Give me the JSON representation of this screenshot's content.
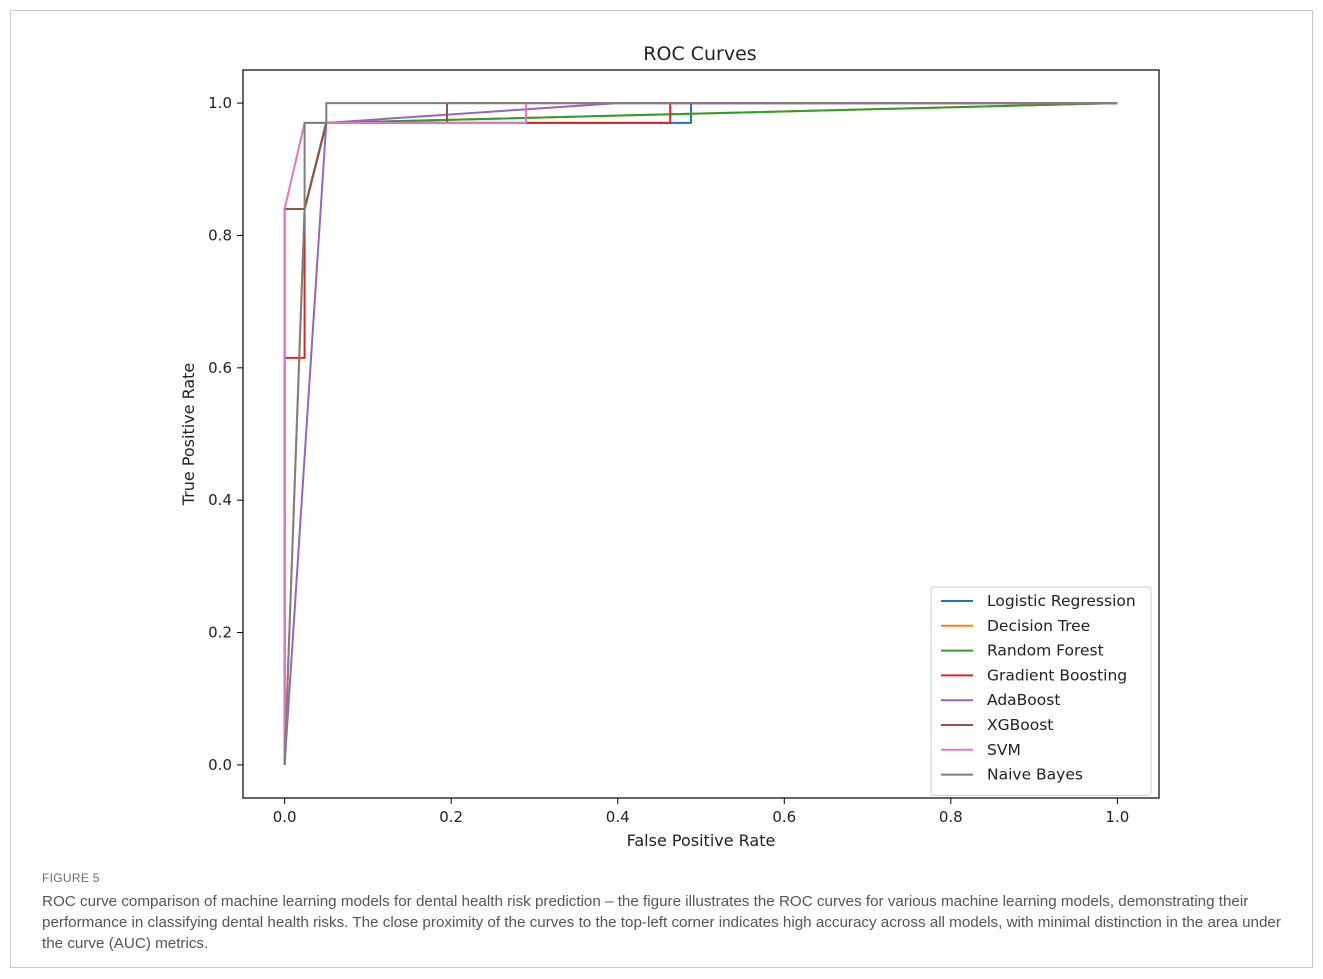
{
  "chart_data": {
    "type": "line",
    "title": "ROC Curves",
    "xlabel": "False Positive Rate",
    "ylabel": "True Positive Rate",
    "xlim": [
      -0.05,
      1.05
    ],
    "ylim": [
      -0.05,
      1.05
    ],
    "xticks": [
      "0.0",
      "0.2",
      "0.4",
      "0.6",
      "0.8",
      "1.0"
    ],
    "yticks": [
      "0.0",
      "0.2",
      "0.4",
      "0.6",
      "0.8",
      "1.0"
    ],
    "grid": false,
    "legend_position": "bottom-right",
    "series": [
      {
        "name": "Logistic Regression",
        "color": "#1f77b4",
        "x": [
          0,
          0,
          0.024,
          0.05,
          0.488,
          0.488,
          1.0
        ],
        "y": [
          0,
          0.84,
          0.84,
          0.97,
          0.97,
          1.0,
          1.0
        ]
      },
      {
        "name": "Decision Tree",
        "color": "#ff7f0e",
        "x": [
          0,
          0.024,
          0.05,
          1.0
        ],
        "y": [
          0,
          0.84,
          0.97,
          1.0
        ]
      },
      {
        "name": "Random Forest",
        "color": "#2ca02c",
        "x": [
          0,
          0,
          0.024,
          0.05,
          1.0
        ],
        "y": [
          0,
          0.84,
          0.84,
          0.97,
          1.0
        ]
      },
      {
        "name": "Gradient Boosting",
        "color": "#d62728",
        "x": [
          0,
          0,
          0.024,
          0.024,
          0.05,
          0.463,
          0.463,
          1.0
        ],
        "y": [
          0,
          0.615,
          0.615,
          0.84,
          0.97,
          0.97,
          1.0,
          1.0
        ]
      },
      {
        "name": "AdaBoost",
        "color": "#9467bd",
        "x": [
          0,
          0.05,
          0.4,
          1.0
        ],
        "y": [
          0,
          0.97,
          1.0,
          1.0
        ]
      },
      {
        "name": "XGBoost",
        "color": "#8c564b",
        "x": [
          0,
          0,
          0.024,
          0.05,
          0.195,
          0.195,
          1.0
        ],
        "y": [
          0,
          0.84,
          0.84,
          0.97,
          0.97,
          1.0,
          1.0
        ]
      },
      {
        "name": "SVM",
        "color": "#e377c2",
        "x": [
          0,
          0,
          0.024,
          0.29,
          0.29,
          1.0
        ],
        "y": [
          0,
          0.84,
          0.97,
          0.97,
          1.0,
          1.0
        ]
      },
      {
        "name": "Naive Bayes",
        "color": "#7f7f7f",
        "x": [
          0,
          0.024,
          0.024,
          0.05,
          0.05,
          1.0
        ],
        "y": [
          0,
          0.84,
          0.97,
          0.97,
          1.0,
          1.0
        ]
      }
    ]
  },
  "figure": {
    "label": "FIGURE 5",
    "caption": "ROC curve comparison of machine learning models for dental health risk prediction – the figure illustrates the ROC curves for various machine learning models, demonstrating their performance in classifying dental health risks. The close proximity of the curves to the top-left corner indicates high accuracy across all models, with minimal distinction in the area under the curve (AUC) metrics."
  }
}
